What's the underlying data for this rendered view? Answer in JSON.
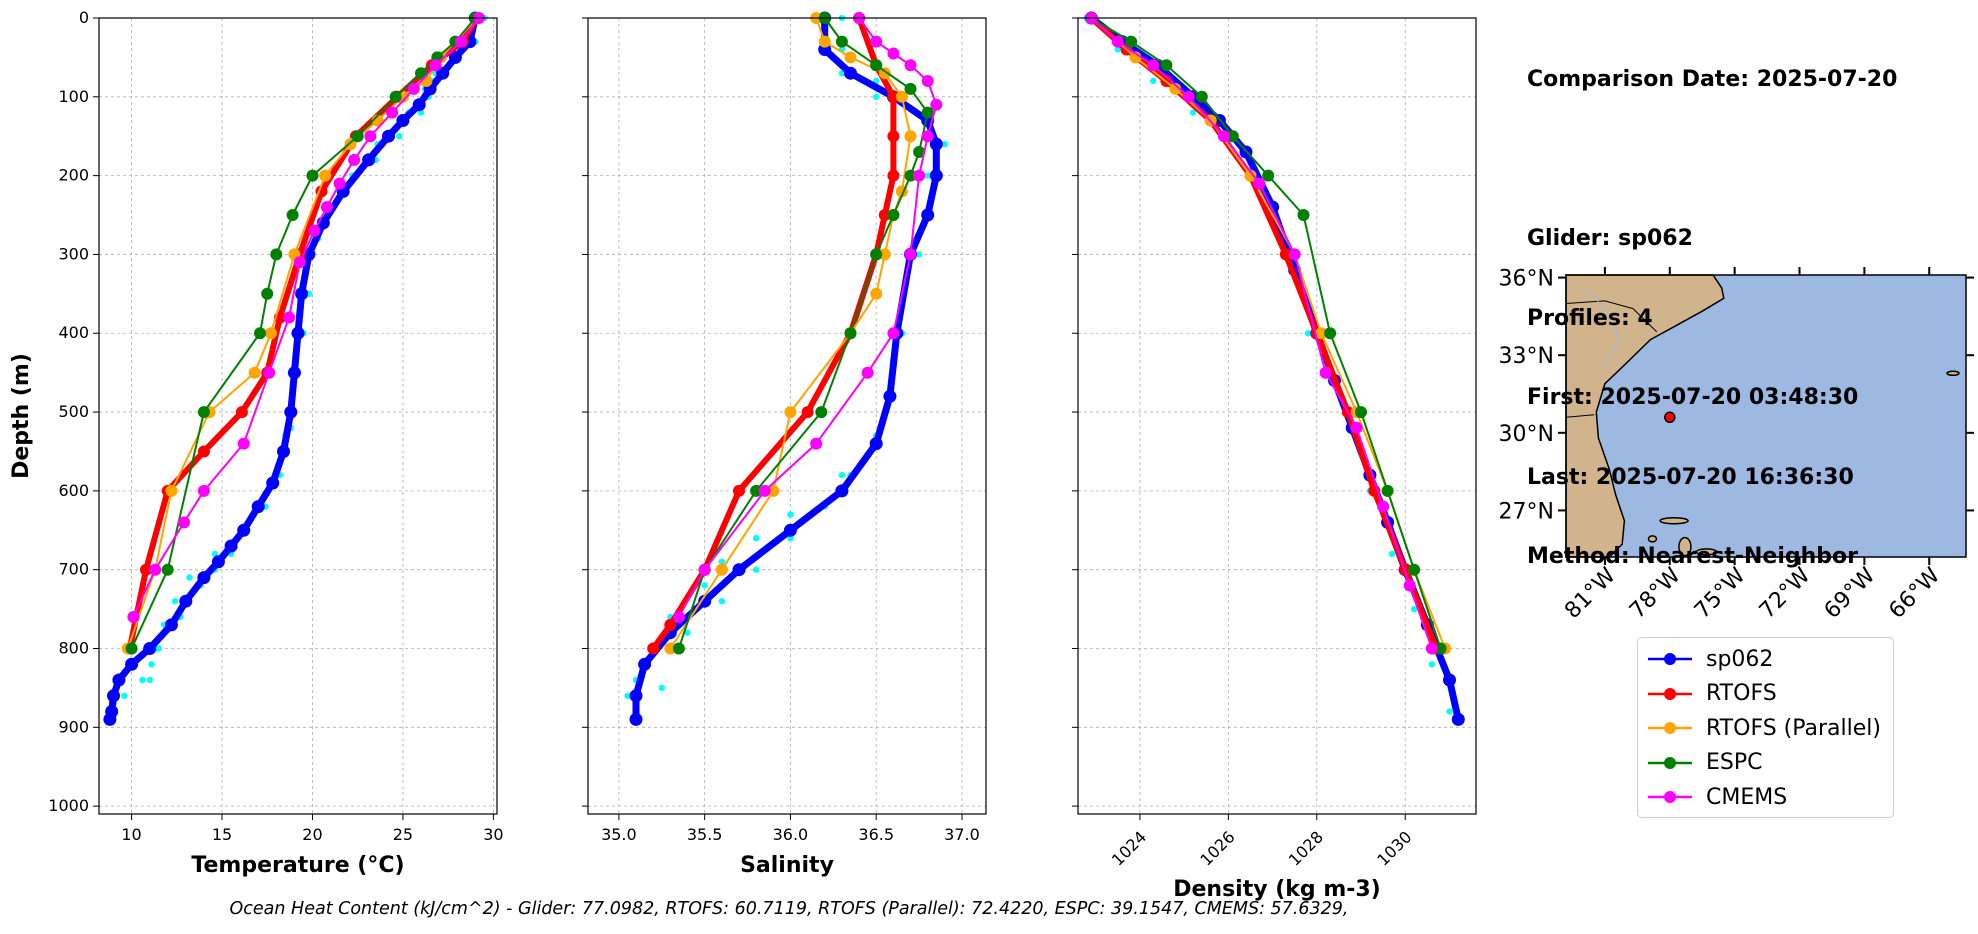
{
  "chart_data": [
    {
      "type": "line",
      "title": "",
      "xlabel": "Temperature (°C)",
      "ylabel": "Depth (m)",
      "xlim": [
        8.2,
        30.2
      ],
      "ylim": [
        1010,
        0
      ],
      "xticks": [
        10,
        15,
        20,
        25,
        30
      ],
      "yticks": [
        0,
        100,
        200,
        300,
        400,
        500,
        600,
        700,
        800,
        900,
        1000
      ],
      "grid": true,
      "series": [
        {
          "name": "sp062 (min)",
          "color": "#00ffff",
          "x": [
            29.3,
            28.8,
            27.8,
            26.8,
            26.2,
            25.3,
            23.6,
            22.2,
            20.8,
            19.8,
            19.4,
            19.1,
            18.9,
            18.7,
            18.5,
            18.1,
            17.4,
            16.4,
            15.5,
            14.6,
            13.8,
            12.7,
            11.5,
            11.1,
            10.6,
            9.6,
            9.0,
            8.9
          ],
          "y": [
            0,
            30,
            55,
            70,
            90,
            120,
            160,
            200,
            240,
            300,
            350,
            400,
            450,
            500,
            530,
            580,
            620,
            650,
            680,
            700,
            720,
            760,
            800,
            820,
            840,
            860,
            870,
            875
          ]
        },
        {
          "name": "sp062 (max)",
          "color": "#00ffff",
          "x": [
            29.5,
            29.0,
            28.0,
            26.9,
            26.6,
            26.4,
            26.0,
            24.8,
            23.5,
            21.6,
            20.3,
            19.8,
            19.5,
            19.2,
            18.8,
            18.2,
            17.2,
            16.0,
            14.6,
            13.2,
            12.4,
            11.8,
            11.4,
            11.0
          ],
          "y": [
            0,
            30,
            50,
            65,
            80,
            100,
            120,
            150,
            180,
            220,
            280,
            350,
            400,
            450,
            520,
            580,
            620,
            650,
            680,
            710,
            740,
            770,
            800,
            840
          ]
        },
        {
          "name": "sp062",
          "color": "#0000ff",
          "x": [
            29.0,
            28.7,
            27.9,
            27.2,
            26.5,
            25.9,
            25.0,
            24.2,
            23.1,
            21.7,
            20.6,
            19.8,
            19.4,
            19.2,
            19.0,
            18.8,
            18.4,
            17.8,
            17.0,
            16.2,
            15.5,
            14.8,
            14.0,
            13.0,
            12.2,
            11.0,
            10.0,
            9.3,
            9.0,
            8.9,
            8.8
          ],
          "y": [
            0,
            30,
            50,
            70,
            90,
            110,
            130,
            150,
            180,
            220,
            260,
            300,
            350,
            400,
            450,
            500,
            550,
            590,
            620,
            650,
            670,
            690,
            710,
            740,
            770,
            800,
            820,
            840,
            860,
            880,
            890
          ]
        },
        {
          "name": "RTOFS",
          "color": "#ff0000",
          "x": [
            29.1,
            28.3,
            26.6,
            24.7,
            22.4,
            20.5,
            19.3,
            18.2,
            17.5,
            16.1,
            14.0,
            12.0,
            10.8,
            9.9
          ],
          "y": [
            0,
            30,
            60,
            100,
            150,
            220,
            300,
            380,
            450,
            500,
            550,
            600,
            700,
            800
          ]
        },
        {
          "name": "RTOFS (Parallel)",
          "color": "#ffa500",
          "x": [
            29.1,
            27.1,
            26.3,
            25.0,
            23.6,
            22.1,
            20.7,
            19.0,
            17.7,
            16.8,
            14.3,
            12.2,
            11.3,
            9.8
          ],
          "y": [
            0,
            50,
            80,
            100,
            130,
            160,
            200,
            300,
            400,
            450,
            500,
            600,
            700,
            800
          ]
        },
        {
          "name": "ESPC",
          "color": "#008000",
          "x": [
            29.0,
            27.9,
            26.9,
            26.0,
            24.6,
            22.5,
            20.0,
            18.9,
            18.0,
            17.5,
            17.1,
            14.0,
            12.0,
            10.0
          ],
          "y": [
            0,
            30,
            50,
            70,
            100,
            150,
            200,
            250,
            300,
            350,
            400,
            500,
            700,
            800
          ]
        },
        {
          "name": "CMEMS",
          "color": "#ff00ff",
          "x": [
            29.2,
            28.2,
            26.8,
            25.6,
            24.4,
            23.2,
            22.3,
            21.5,
            20.8,
            20.1,
            19.3,
            18.7,
            17.6,
            16.2,
            14.0,
            12.9,
            11.3,
            10.1
          ],
          "y": [
            0,
            30,
            60,
            90,
            120,
            150,
            180,
            210,
            240,
            270,
            310,
            380,
            450,
            540,
            600,
            640,
            700,
            760
          ]
        }
      ]
    },
    {
      "type": "line",
      "title": "",
      "xlabel": "Salinity",
      "ylabel": "",
      "xlim": [
        34.82,
        37.14
      ],
      "ylim": [
        1010,
        0
      ],
      "xticks": [
        35.0,
        35.5,
        36.0,
        36.5,
        37.0
      ],
      "yticks": [
        0,
        100,
        200,
        300,
        400,
        500,
        600,
        700,
        800,
        900,
        1000
      ],
      "grid": true,
      "series": [
        {
          "name": "sp062 (min)",
          "color": "#00ffff",
          "x": [
            36.2,
            36.2,
            36.3,
            36.5,
            36.7,
            36.8,
            36.8,
            36.7,
            36.6,
            36.55,
            36.5,
            36.3,
            36.0,
            35.8,
            35.6,
            35.5,
            35.3,
            35.2,
            35.1,
            35.05
          ],
          "y": [
            0,
            40,
            70,
            100,
            150,
            200,
            250,
            300,
            400,
            500,
            540,
            580,
            630,
            660,
            690,
            720,
            760,
            800,
            840,
            860
          ]
        },
        {
          "name": "sp062 (max)",
          "color": "#00ffff",
          "x": [
            36.3,
            36.3,
            36.5,
            36.8,
            36.9,
            36.85,
            36.75,
            36.65,
            36.6,
            36.5,
            36.35,
            36.2,
            36.0,
            35.8,
            35.6,
            35.4,
            35.3,
            35.25
          ],
          "y": [
            0,
            40,
            80,
            120,
            160,
            200,
            300,
            400,
            480,
            530,
            580,
            620,
            660,
            700,
            740,
            780,
            800,
            850
          ]
        },
        {
          "name": "sp062",
          "color": "#0000ff",
          "x": [
            36.2,
            36.2,
            36.35,
            36.6,
            36.8,
            36.85,
            36.85,
            36.8,
            36.7,
            36.62,
            36.58,
            36.5,
            36.3,
            36.0,
            35.7,
            35.5,
            35.3,
            35.15,
            35.1,
            35.1
          ],
          "y": [
            0,
            40,
            70,
            100,
            130,
            160,
            200,
            250,
            300,
            400,
            480,
            540,
            600,
            650,
            700,
            740,
            780,
            820,
            860,
            890
          ]
        },
        {
          "name": "RTOFS",
          "color": "#ff0000",
          "x": [
            36.4,
            36.5,
            36.6,
            36.6,
            36.6,
            36.55,
            36.5,
            36.35,
            36.1,
            35.7,
            35.5,
            35.3,
            35.2
          ],
          "y": [
            0,
            60,
            100,
            150,
            200,
            250,
            300,
            400,
            500,
            600,
            700,
            770,
            800
          ]
        },
        {
          "name": "RTOFS (Parallel)",
          "color": "#ffa500",
          "x": [
            36.15,
            36.2,
            36.35,
            36.55,
            36.65,
            36.7,
            36.65,
            36.6,
            36.55,
            36.5,
            36.35,
            36.0,
            35.9,
            35.6,
            35.3
          ],
          "y": [
            0,
            30,
            50,
            70,
            100,
            150,
            220,
            250,
            300,
            350,
            400,
            500,
            600,
            700,
            800
          ]
        },
        {
          "name": "ESPC",
          "color": "#008000",
          "x": [
            36.2,
            36.3,
            36.5,
            36.7,
            36.8,
            36.75,
            36.7,
            36.6,
            36.5,
            36.35,
            36.18,
            35.8,
            35.5,
            35.35
          ],
          "y": [
            0,
            30,
            60,
            90,
            120,
            170,
            200,
            250,
            300,
            400,
            500,
            600,
            700,
            800
          ]
        },
        {
          "name": "CMEMS",
          "color": "#ff00ff",
          "x": [
            36.4,
            36.5,
            36.6,
            36.7,
            36.8,
            36.85,
            36.8,
            36.75,
            36.7,
            36.6,
            36.45,
            36.15,
            35.85,
            35.5,
            35.35
          ],
          "y": [
            0,
            30,
            45,
            60,
            80,
            110,
            150,
            200,
            300,
            400,
            450,
            540,
            600,
            700,
            760
          ]
        }
      ]
    },
    {
      "type": "line",
      "title": "",
      "xlabel": "Density (kg m-3)",
      "ylabel": "",
      "xlim": [
        1022.6,
        1031.6
      ],
      "ylim": [
        1010,
        0
      ],
      "xticks": [
        1024,
        1026,
        1028,
        1030
      ],
      "yticks": [
        0,
        100,
        200,
        300,
        400,
        500,
        600,
        700,
        800,
        900,
        1000
      ],
      "grid": true,
      "series": [
        {
          "name": "sp062 (min)",
          "color": "#00ffff",
          "x": [
            1022.8,
            1023.5,
            1024.3,
            1025.2,
            1026.0,
            1026.6,
            1027.3,
            1027.8,
            1028.2,
            1028.7,
            1029.2,
            1029.7,
            1030.2,
            1030.6,
            1031.0
          ],
          "y": [
            0,
            40,
            80,
            120,
            160,
            200,
            300,
            400,
            450,
            500,
            600,
            680,
            750,
            820,
            880
          ]
        },
        {
          "name": "sp062",
          "color": "#0000ff",
          "x": [
            1022.9,
            1023.6,
            1024.4,
            1025.2,
            1025.8,
            1026.4,
            1027.0,
            1027.5,
            1028.0,
            1028.4,
            1028.8,
            1029.2,
            1029.6,
            1030.0,
            1030.5,
            1031.0,
            1031.2
          ],
          "y": [
            0,
            30,
            60,
            100,
            130,
            170,
            240,
            320,
            400,
            460,
            520,
            580,
            640,
            700,
            770,
            840,
            890
          ]
        },
        {
          "name": "RTOFS",
          "color": "#ff0000",
          "x": [
            1022.9,
            1023.7,
            1024.6,
            1025.6,
            1026.5,
            1027.3,
            1028.0,
            1028.7,
            1029.3,
            1030.0,
            1030.7
          ],
          "y": [
            0,
            40,
            80,
            130,
            200,
            300,
            400,
            500,
            600,
            700,
            800
          ]
        },
        {
          "name": "RTOFS (Parallel)",
          "color": "#ffa500",
          "x": [
            1022.9,
            1023.9,
            1024.8,
            1025.6,
            1026.5,
            1027.5,
            1028.1,
            1028.9,
            1029.6,
            1030.2,
            1030.9
          ],
          "y": [
            0,
            50,
            90,
            130,
            200,
            300,
            400,
            500,
            600,
            700,
            800
          ]
        },
        {
          "name": "ESPC",
          "color": "#008000",
          "x": [
            1022.9,
            1023.8,
            1024.6,
            1025.4,
            1026.1,
            1026.9,
            1027.7,
            1028.3,
            1029.0,
            1029.6,
            1030.2,
            1030.8
          ],
          "y": [
            0,
            30,
            60,
            100,
            150,
            200,
            250,
            400,
            500,
            600,
            700,
            800
          ]
        },
        {
          "name": "CMEMS",
          "color": "#ff00ff",
          "x": [
            1022.9,
            1023.5,
            1024.3,
            1025.1,
            1025.9,
            1026.7,
            1027.5,
            1028.2,
            1028.9,
            1029.5,
            1030.1,
            1030.6
          ],
          "y": [
            0,
            30,
            60,
            100,
            150,
            210,
            300,
            450,
            520,
            620,
            720,
            800
          ]
        }
      ]
    }
  ],
  "info": {
    "comparison": "Comparison Date: 2025-07-20",
    "glider": "Glider: sp062",
    "profiles": "Profiles: 4",
    "first": "First: 2025-07-20 03:48:30",
    "last": "Last: 2025-07-20 16:36:30",
    "method": "Method: Nearest-Neighbor"
  },
  "map": {
    "lat_ticks": [
      "36°N",
      "33°N",
      "30°N",
      "27°N"
    ],
    "lon_ticks": [
      "81°W",
      "78°W",
      "75°W",
      "72°W",
      "69°W",
      "66°W"
    ],
    "extent": {
      "lon": [
        -82.8,
        -64.3
      ],
      "lat": [
        25.2,
        36.1
      ]
    },
    "glider_position": {
      "lon": -78.0,
      "lat": 30.6
    },
    "land_color": "#d2b48c",
    "ocean_color": "#9db9e1"
  },
  "legend": [
    {
      "label": "sp062",
      "color": "#0000ff"
    },
    {
      "label": "RTOFS",
      "color": "#ff0000"
    },
    {
      "label": "RTOFS (Parallel)",
      "color": "#ffa500"
    },
    {
      "label": "ESPC",
      "color": "#008000"
    },
    {
      "label": "CMEMS",
      "color": "#ff00ff"
    }
  ],
  "ohc_text": "Ocean Heat Content (kJ/cm^2) - Glider: 77.0982,  RTOFS: 60.7119,  RTOFS (Parallel): 72.4220,  ESPC: 39.1547,  CMEMS: 57.6329,"
}
